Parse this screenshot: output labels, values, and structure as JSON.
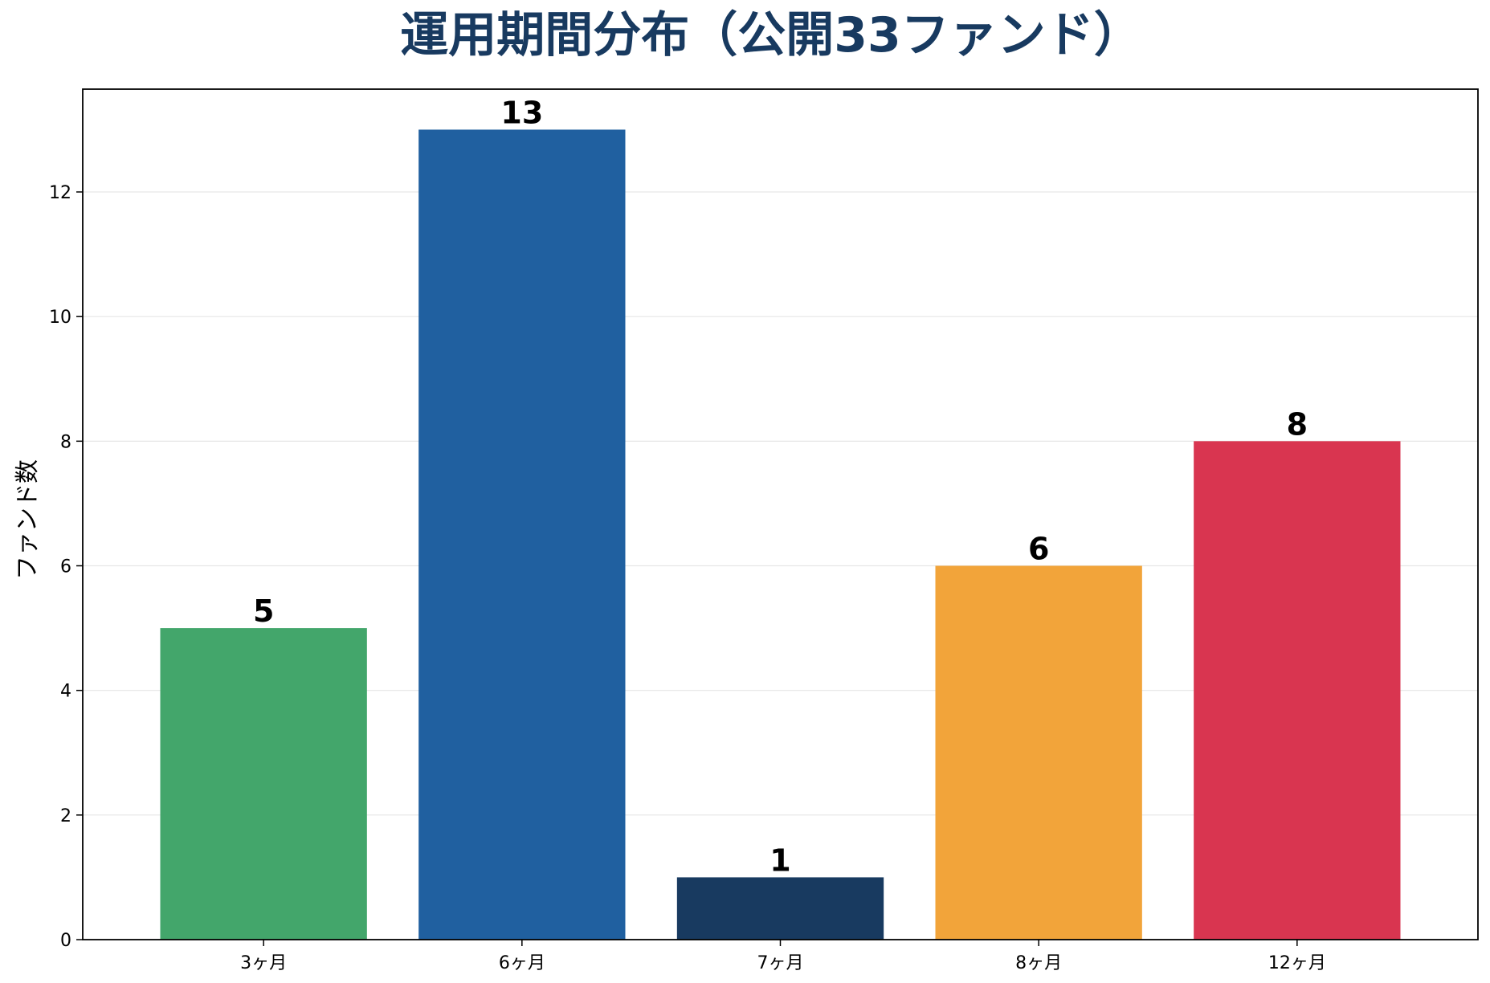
{
  "chart_data": {
    "type": "bar",
    "title": "運用期間分布（公開33ファンド）",
    "xlabel": "",
    "ylabel": "ファンド数",
    "categories": [
      "3ヶ月",
      "6ヶ月",
      "7ヶ月",
      "8ヶ月",
      "12ヶ月"
    ],
    "values": [
      5,
      13,
      1,
      6,
      8
    ],
    "data_labels": [
      "5",
      "13",
      "1",
      "6",
      "8"
    ],
    "ylim": [
      0,
      13.65
    ],
    "yticks": [
      0,
      2,
      4,
      6,
      8,
      10,
      12
    ],
    "ytick_labels": [
      "0",
      "2",
      "4",
      "6",
      "8",
      "10",
      "12"
    ],
    "grid": "y",
    "legend": "none",
    "colors": [
      "#43a66b",
      "#2060a0",
      "#183a60",
      "#f2a43a",
      "#d93550"
    ],
    "title_color": "#183a60",
    "grid_color": "#e6e6e6"
  }
}
